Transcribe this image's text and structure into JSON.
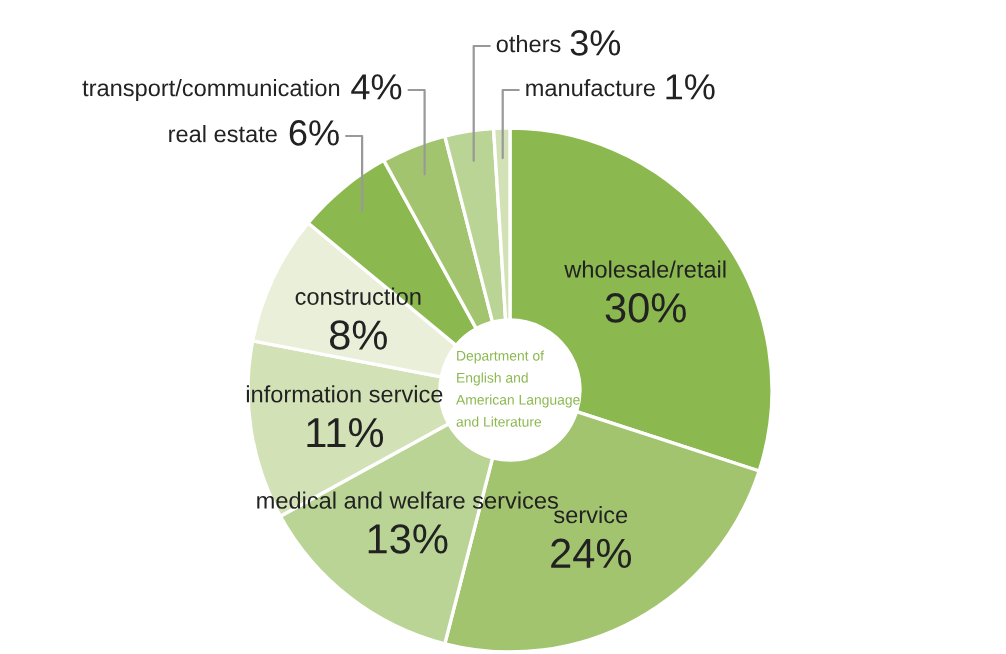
{
  "chart_data": {
    "type": "donut",
    "categories": [
      "wholesale/retail",
      "service",
      "medical and welfare services",
      "information service",
      "construction",
      "real estate",
      "transport/communication",
      "others",
      "manufacture"
    ],
    "values": [
      30,
      24,
      13,
      11,
      8,
      6,
      4,
      3,
      1
    ],
    "value_labels": [
      "30%",
      "24%",
      "13%",
      "11%",
      "8%",
      "6%",
      "4%",
      "3%",
      "1%"
    ],
    "colors": [
      "#8bb84f",
      "#a3c46f",
      "#b9d494",
      "#d3e2b6",
      "#e9efd9",
      "#8bb84f",
      "#a3c46f",
      "#b9d494",
      "#d3e2b6"
    ],
    "annotations": [
      "Department of\nEnglish and\nAmerican Language\nand Literature"
    ],
    "legend": false
  }
}
